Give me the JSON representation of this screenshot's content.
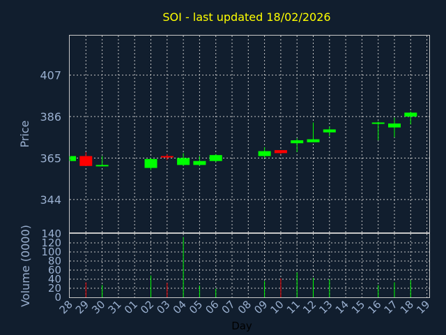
{
  "chart_data": {
    "type": "candlestick",
    "title": "SOI - last updated 18/02/2026",
    "xlabel": "Day",
    "ylabel_price": "Price",
    "ylabel_volume": "Volume (0000)",
    "x_ticks": [
      "28",
      "29",
      "30",
      "31",
      "01",
      "02",
      "03",
      "04",
      "05",
      "06",
      "07",
      "08",
      "09",
      "10",
      "11",
      "12",
      "13",
      "14",
      "15",
      "16",
      "17",
      "18",
      "19"
    ],
    "price_ticks": [
      344,
      365,
      386,
      407
    ],
    "price_range": [
      327,
      427
    ],
    "volume_ticks": [
      0,
      20,
      40,
      60,
      80,
      100,
      120,
      140
    ],
    "volume_range": [
      0,
      140
    ],
    "up_color": "#00ff00",
    "down_color": "#ff0000",
    "candles": [
      {
        "day": "28",
        "open": 363.5,
        "close": 366.0,
        "high": 366.0,
        "low": 363.5,
        "volume": 0
      },
      {
        "day": "29",
        "open": 366.0,
        "close": 361.0,
        "high": 368.0,
        "low": 361.0,
        "volume": 33
      },
      {
        "day": "30",
        "open": 361.5,
        "close": 361.5,
        "high": 366.0,
        "low": 361.0,
        "volume": 27
      },
      {
        "day": "02",
        "open": 360.0,
        "close": 364.5,
        "high": 365.0,
        "low": 359.0,
        "volume": 48
      },
      {
        "day": "03",
        "open": 366.0,
        "close": 365.5,
        "high": 367.0,
        "low": 364.0,
        "volume": 32
      },
      {
        "day": "04",
        "open": 361.5,
        "close": 365.0,
        "high": 367.5,
        "low": 361.0,
        "volume": 133
      },
      {
        "day": "05",
        "open": 361.5,
        "close": 363.5,
        "high": 366.0,
        "low": 361.0,
        "volume": 26
      },
      {
        "day": "06",
        "open": 363.5,
        "close": 366.5,
        "high": 367.0,
        "low": 363.0,
        "volume": 19
      },
      {
        "day": "09",
        "open": 366.0,
        "close": 368.5,
        "high": 370.5,
        "low": 365.0,
        "volume": 36
      },
      {
        "day": "10",
        "open": 369.0,
        "close": 367.5,
        "high": 369.0,
        "low": 367.0,
        "volume": 42
      },
      {
        "day": "11",
        "open": 372.5,
        "close": 374.0,
        "high": 375.0,
        "low": 368.0,
        "volume": 55
      },
      {
        "day": "12",
        "open": 373.0,
        "close": 374.5,
        "high": 383.0,
        "low": 373.0,
        "volume": 43
      },
      {
        "day": "13",
        "open": 378.0,
        "close": 379.5,
        "high": 381.0,
        "low": 376.0,
        "volume": 40
      },
      {
        "day": "16",
        "open": 382.5,
        "close": 383.0,
        "high": 383.5,
        "low": 374.0,
        "volume": 27
      },
      {
        "day": "17",
        "open": 380.5,
        "close": 382.5,
        "high": 385.5,
        "low": 375.5,
        "volume": 33
      },
      {
        "day": "18",
        "open": 386.0,
        "close": 388.0,
        "high": 388.5,
        "low": 382.0,
        "volume": 38
      }
    ]
  }
}
